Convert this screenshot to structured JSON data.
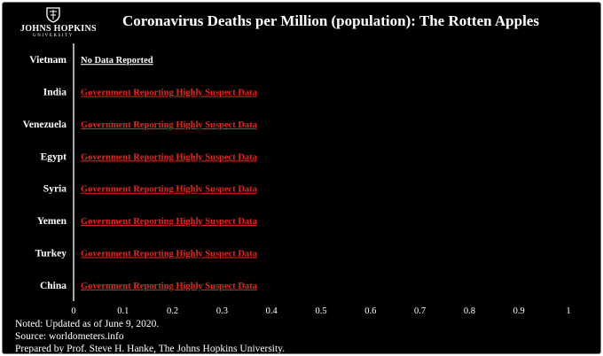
{
  "logo": {
    "name": "JOHNS HOPKINS",
    "sub": "UNIVERSITY"
  },
  "chart_data": {
    "type": "bar",
    "title": "Coronavirus Deaths per Million (population):  The Rotten Apples",
    "categories": [
      "Vietnam",
      "India",
      "Venezuela",
      "Egypt",
      "Syria",
      "Yemen",
      "Turkey",
      "China"
    ],
    "values": [
      null,
      null,
      null,
      null,
      null,
      null,
      null,
      null
    ],
    "bar_labels": [
      "No Data Reported",
      "Government Reporting Highly Suspect Data",
      "Government Reporting Highly Suspect Data",
      "Government Reporting Highly Suspect Data",
      "Government Reporting Highly Suspect Data",
      "Government Reporting Highly Suspect Data",
      "Government Reporting Highly Suspect Data",
      "Government Reporting Highly Suspect Data"
    ],
    "label_colors": [
      "#ffffff",
      "#e8241b",
      "#e8241b",
      "#e8241b",
      "#e8241b",
      "#e8241b",
      "#e8241b",
      "#e8241b"
    ],
    "x_ticks": [
      "0",
      "0.1",
      "0.2",
      "0.3",
      "0.4",
      "0.5",
      "0.6",
      "0.7",
      "0.8",
      "0.9",
      "1"
    ],
    "xlim": [
      0,
      1
    ],
    "orientation": "horizontal",
    "grid": false,
    "colors": {
      "background": "#000000",
      "text": "#ffffff",
      "alert": "#e8241b"
    }
  },
  "notes": [
    "Noted: Updated as of June 9, 2020.",
    "Source: worldometers.info",
    "Prepared by Prof. Steve H. Hanke, The Johns Hopkins University."
  ]
}
